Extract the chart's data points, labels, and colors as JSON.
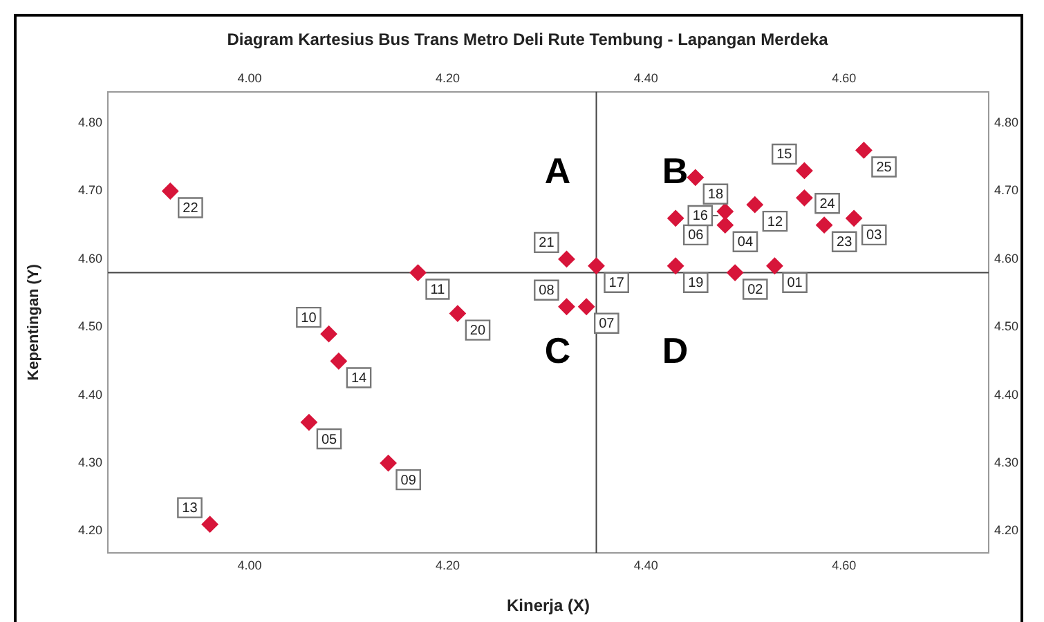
{
  "chart_data": {
    "type": "scatter",
    "title": "Diagram Kartesius Bus Trans Metro Deli Rute Tembung - Lapangan Merdeka",
    "xlabel": "Kinerja (X)",
    "ylabel": "Kepentingan (Y)",
    "x": [
      4.53,
      4.49,
      4.61,
      4.48,
      4.06,
      4.43,
      4.34,
      4.32,
      4.14,
      4.08,
      4.17,
      4.51,
      3.96,
      4.09,
      4.56,
      4.48,
      4.35,
      4.45,
      4.43,
      4.21,
      4.32,
      3.92,
      4.58,
      4.56,
      4.62
    ],
    "series": [
      {
        "color": "#d7153a",
        "values": [
          4.59,
          4.58,
          4.66,
          4.65,
          4.36,
          4.66,
          4.53,
          4.53,
          4.3,
          4.49,
          4.58,
          4.68,
          4.21,
          4.45,
          4.73,
          4.67,
          4.59,
          4.72,
          4.59,
          4.52,
          4.6,
          4.7,
          4.65,
          4.69,
          4.76
        ]
      }
    ],
    "xlim": [
      3.857,
      4.746
    ],
    "xticks": [
      {
        "value": 4.0,
        "label": "4.00"
      },
      {
        "value": 4.2,
        "label": "4.20"
      },
      {
        "value": 4.4,
        "label": "4.40"
      },
      {
        "value": 4.6,
        "label": "4.60"
      }
    ],
    "x2lim": [
      3.857,
      4.746
    ],
    "x2ticks": [
      {
        "value": 4.0,
        "label": "4.00"
      },
      {
        "value": 4.2,
        "label": "4.20"
      },
      {
        "value": 4.4,
        "label": "4.40"
      },
      {
        "value": 4.6,
        "label": "4.60"
      }
    ],
    "ylim": [
      4.168,
      4.846
    ],
    "yticks": [
      {
        "value": 4.2,
        "label": "4.20"
      },
      {
        "value": 4.3,
        "label": "4.30"
      },
      {
        "value": 4.4,
        "label": "4.40"
      },
      {
        "value": 4.5,
        "label": "4.50"
      },
      {
        "value": 4.6,
        "label": "4.60"
      },
      {
        "value": 4.7,
        "label": "4.70"
      },
      {
        "value": 4.8,
        "label": "4.80"
      }
    ],
    "y2lim": [
      4.168,
      4.846
    ],
    "y2ticks": [
      {
        "value": 4.2,
        "label": "4.20"
      },
      {
        "value": 4.3,
        "label": "4.30"
      },
      {
        "value": 4.4,
        "label": "4.40"
      },
      {
        "value": 4.5,
        "label": "4.50"
      },
      {
        "value": 4.6,
        "label": "4.60"
      },
      {
        "value": 4.7,
        "label": "4.70"
      },
      {
        "value": 4.8,
        "label": "4.80"
      }
    ],
    "ref_lines": [
      {
        "axis": "x",
        "value": 4.35
      },
      {
        "axis": "y",
        "value": 4.58
      }
    ],
    "annotations": [
      {
        "text": "01",
        "x": 4.53,
        "y": 4.59
      },
      {
        "text": "02",
        "x": 4.49,
        "y": 4.58
      },
      {
        "text": "03",
        "x": 4.61,
        "y": 4.66
      },
      {
        "text": "04",
        "x": 4.48,
        "y": 4.65
      },
      {
        "text": "05",
        "x": 4.06,
        "y": 4.36
      },
      {
        "text": "06",
        "x": 4.43,
        "y": 4.66
      },
      {
        "text": "07",
        "x": 4.34,
        "y": 4.53
      },
      {
        "text": "08",
        "x": 4.32,
        "y": 4.53
      },
      {
        "text": "09",
        "x": 4.14,
        "y": 4.3
      },
      {
        "text": "10",
        "x": 4.08,
        "y": 4.49
      },
      {
        "text": "11",
        "x": 4.17,
        "y": 4.58
      },
      {
        "text": "12",
        "x": 4.51,
        "y": 4.68
      },
      {
        "text": "13",
        "x": 3.96,
        "y": 4.21
      },
      {
        "text": "14",
        "x": 4.09,
        "y": 4.45
      },
      {
        "text": "15",
        "x": 4.56,
        "y": 4.73
      },
      {
        "text": "16",
        "x": 4.48,
        "y": 4.67
      },
      {
        "text": "17",
        "x": 4.35,
        "y": 4.59
      },
      {
        "text": "18",
        "x": 4.45,
        "y": 4.72
      },
      {
        "text": "19",
        "x": 4.43,
        "y": 4.59
      },
      {
        "text": "20",
        "x": 4.21,
        "y": 4.52
      },
      {
        "text": "21",
        "x": 4.32,
        "y": 4.6
      },
      {
        "text": "22",
        "x": 3.92,
        "y": 4.7
      },
      {
        "text": "23",
        "x": 4.58,
        "y": 4.65
      },
      {
        "text": "24",
        "x": 4.56,
        "y": 4.69
      },
      {
        "text": "25",
        "x": 4.62,
        "y": 4.76
      },
      "A",
      "B",
      "C",
      "D"
    ],
    "marker": "diamond",
    "grid": false,
    "legend": false
  }
}
